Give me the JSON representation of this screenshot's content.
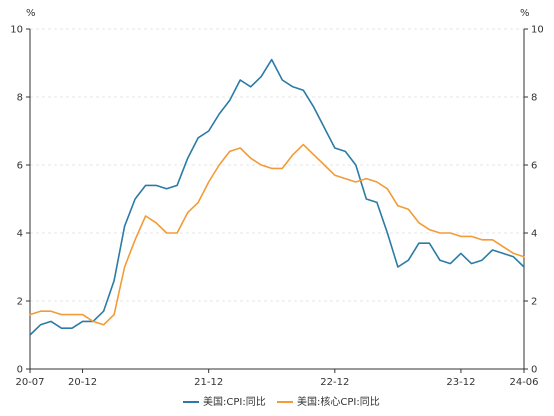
{
  "chart_data": {
    "type": "line",
    "title": "",
    "y_unit_left": "%",
    "y_unit_right": "%",
    "ylim": [
      0,
      10
    ],
    "y_ticks": [
      0,
      2,
      4,
      6,
      8,
      10
    ],
    "x_tick_labels": [
      "20-07",
      "20-12",
      "21-12",
      "22-12",
      "23-12",
      "24-06"
    ],
    "x_tick_months": [
      "2020-07",
      "2020-12",
      "2021-12",
      "2022-12",
      "2023-12",
      "2024-06"
    ],
    "x_months": [
      "2020-07",
      "2020-08",
      "2020-09",
      "2020-10",
      "2020-11",
      "2020-12",
      "2021-01",
      "2021-02",
      "2021-03",
      "2021-04",
      "2021-05",
      "2021-06",
      "2021-07",
      "2021-08",
      "2021-09",
      "2021-10",
      "2021-11",
      "2021-12",
      "2022-01",
      "2022-02",
      "2022-03",
      "2022-04",
      "2022-05",
      "2022-06",
      "2022-07",
      "2022-08",
      "2022-09",
      "2022-10",
      "2022-11",
      "2022-12",
      "2023-01",
      "2023-02",
      "2023-03",
      "2023-04",
      "2023-05",
      "2023-06",
      "2023-07",
      "2023-08",
      "2023-09",
      "2023-10",
      "2023-11",
      "2023-12",
      "2024-01",
      "2024-02",
      "2024-03",
      "2024-04",
      "2024-05",
      "2024-06"
    ],
    "series": [
      {
        "name": "美国:CPI:同比",
        "color": "#2b7ba6",
        "values": [
          1.0,
          1.3,
          1.4,
          1.2,
          1.2,
          1.4,
          1.4,
          1.7,
          2.6,
          4.2,
          5.0,
          5.4,
          5.4,
          5.3,
          5.4,
          6.2,
          6.8,
          7.0,
          7.5,
          7.9,
          8.5,
          8.3,
          8.6,
          9.1,
          8.5,
          8.3,
          8.2,
          7.7,
          7.1,
          6.5,
          6.4,
          6.0,
          5.0,
          4.9,
          4.0,
          3.0,
          3.2,
          3.7,
          3.7,
          3.2,
          3.1,
          3.4,
          3.1,
          3.2,
          3.5,
          3.4,
          3.3,
          3.0
        ]
      },
      {
        "name": "美国:核心CPI:同比",
        "color": "#f29b38",
        "values": [
          1.6,
          1.7,
          1.7,
          1.6,
          1.6,
          1.6,
          1.4,
          1.3,
          1.6,
          3.0,
          3.8,
          4.5,
          4.3,
          4.0,
          4.0,
          4.6,
          4.9,
          5.5,
          6.0,
          6.4,
          6.5,
          6.2,
          6.0,
          5.9,
          5.9,
          6.3,
          6.6,
          6.3,
          6.0,
          5.7,
          5.6,
          5.5,
          5.6,
          5.5,
          5.3,
          4.8,
          4.7,
          4.3,
          4.1,
          4.0,
          4.0,
          3.9,
          3.9,
          3.8,
          3.8,
          3.6,
          3.4,
          3.3
        ]
      }
    ],
    "legend_position": "bottom",
    "grid": true
  }
}
